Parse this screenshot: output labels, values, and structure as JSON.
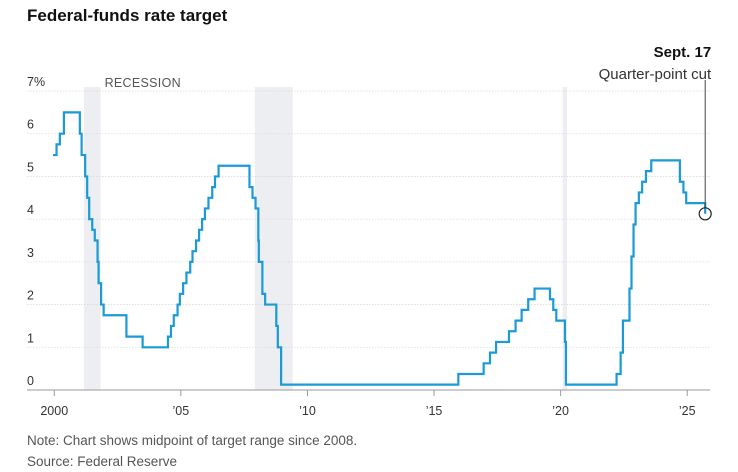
{
  "title": "Federal-funds rate target",
  "footer": {
    "note": "Note: Chart shows midpoint of target range since 2008.",
    "source": "Source: Federal Reserve"
  },
  "colors": {
    "line": "#1a9ad6",
    "recession": "#eceef1",
    "grid": "#d9d9d9",
    "axis": "#999999"
  },
  "chart_data": {
    "type": "line",
    "title": "Federal-funds rate target",
    "xlabel": "",
    "ylabel": "",
    "xlim": [
      1999.95,
      2025.9
    ],
    "ylim": [
      0,
      7
    ],
    "grid": true,
    "y_ticks": [
      0,
      1,
      2,
      3,
      4,
      5,
      6,
      7
    ],
    "y_tick_labels": [
      "0",
      "1",
      "2",
      "3",
      "4",
      "5",
      "6",
      "7%"
    ],
    "x_ticks": [
      2000,
      2005,
      2010,
      2015,
      2020,
      2025
    ],
    "x_tick_labels": [
      "2000",
      "’05",
      "’10",
      "’15",
      "’20",
      "’25"
    ],
    "recession_label": "RECESSION",
    "recessions": [
      [
        2001.17,
        2001.83
      ],
      [
        2007.92,
        2009.42
      ],
      [
        2020.08,
        2020.25
      ]
    ],
    "annotation": {
      "date": "Sept. 17",
      "text": "Quarter-point cut",
      "x": 2025.71,
      "y": 4.125
    },
    "series": [
      {
        "name": "Federal-funds rate target",
        "step": true,
        "points": [
          [
            1999.95,
            5.5
          ],
          [
            2000.09,
            5.75
          ],
          [
            2000.22,
            6.0
          ],
          [
            2000.38,
            6.5
          ],
          [
            2001.01,
            6.0
          ],
          [
            2001.08,
            5.5
          ],
          [
            2001.22,
            5.0
          ],
          [
            2001.3,
            4.5
          ],
          [
            2001.38,
            4.0
          ],
          [
            2001.5,
            3.75
          ],
          [
            2001.6,
            3.5
          ],
          [
            2001.71,
            3.0
          ],
          [
            2001.75,
            2.5
          ],
          [
            2001.85,
            2.0
          ],
          [
            2001.95,
            1.75
          ],
          [
            2002.85,
            1.25
          ],
          [
            2003.49,
            1.0
          ],
          [
            2004.49,
            1.25
          ],
          [
            2004.61,
            1.5
          ],
          [
            2004.72,
            1.75
          ],
          [
            2004.87,
            2.0
          ],
          [
            2004.96,
            2.25
          ],
          [
            2005.09,
            2.5
          ],
          [
            2005.22,
            2.75
          ],
          [
            2005.37,
            3.0
          ],
          [
            2005.46,
            3.25
          ],
          [
            2005.6,
            3.5
          ],
          [
            2005.72,
            3.75
          ],
          [
            2005.84,
            4.0
          ],
          [
            2005.95,
            4.25
          ],
          [
            2006.09,
            4.5
          ],
          [
            2006.24,
            4.75
          ],
          [
            2006.35,
            5.0
          ],
          [
            2006.49,
            5.25
          ],
          [
            2007.71,
            4.75
          ],
          [
            2007.83,
            4.5
          ],
          [
            2007.95,
            4.25
          ],
          [
            2008.06,
            3.5
          ],
          [
            2008.08,
            3.0
          ],
          [
            2008.22,
            2.25
          ],
          [
            2008.33,
            2.0
          ],
          [
            2008.77,
            1.5
          ],
          [
            2008.83,
            1.0
          ],
          [
            2008.96,
            0.125
          ],
          [
            2015.96,
            0.375
          ],
          [
            2016.96,
            0.625
          ],
          [
            2017.21,
            0.875
          ],
          [
            2017.45,
            1.125
          ],
          [
            2017.96,
            1.375
          ],
          [
            2018.22,
            1.625
          ],
          [
            2018.46,
            1.875
          ],
          [
            2018.72,
            2.125
          ],
          [
            2018.97,
            2.375
          ],
          [
            2019.58,
            2.125
          ],
          [
            2019.71,
            1.875
          ],
          [
            2019.83,
            1.625
          ],
          [
            2020.17,
            1.125
          ],
          [
            2020.21,
            0.125
          ],
          [
            2022.21,
            0.375
          ],
          [
            2022.37,
            0.875
          ],
          [
            2022.46,
            1.625
          ],
          [
            2022.72,
            2.375
          ],
          [
            2022.8,
            3.125
          ],
          [
            2022.88,
            3.875
          ],
          [
            2022.96,
            4.375
          ],
          [
            2023.09,
            4.625
          ],
          [
            2023.22,
            4.875
          ],
          [
            2023.37,
            5.125
          ],
          [
            2023.58,
            5.375
          ],
          [
            2024.71,
            4.875
          ],
          [
            2024.85,
            4.625
          ],
          [
            2024.96,
            4.375
          ],
          [
            2025.71,
            4.125
          ]
        ]
      }
    ]
  }
}
